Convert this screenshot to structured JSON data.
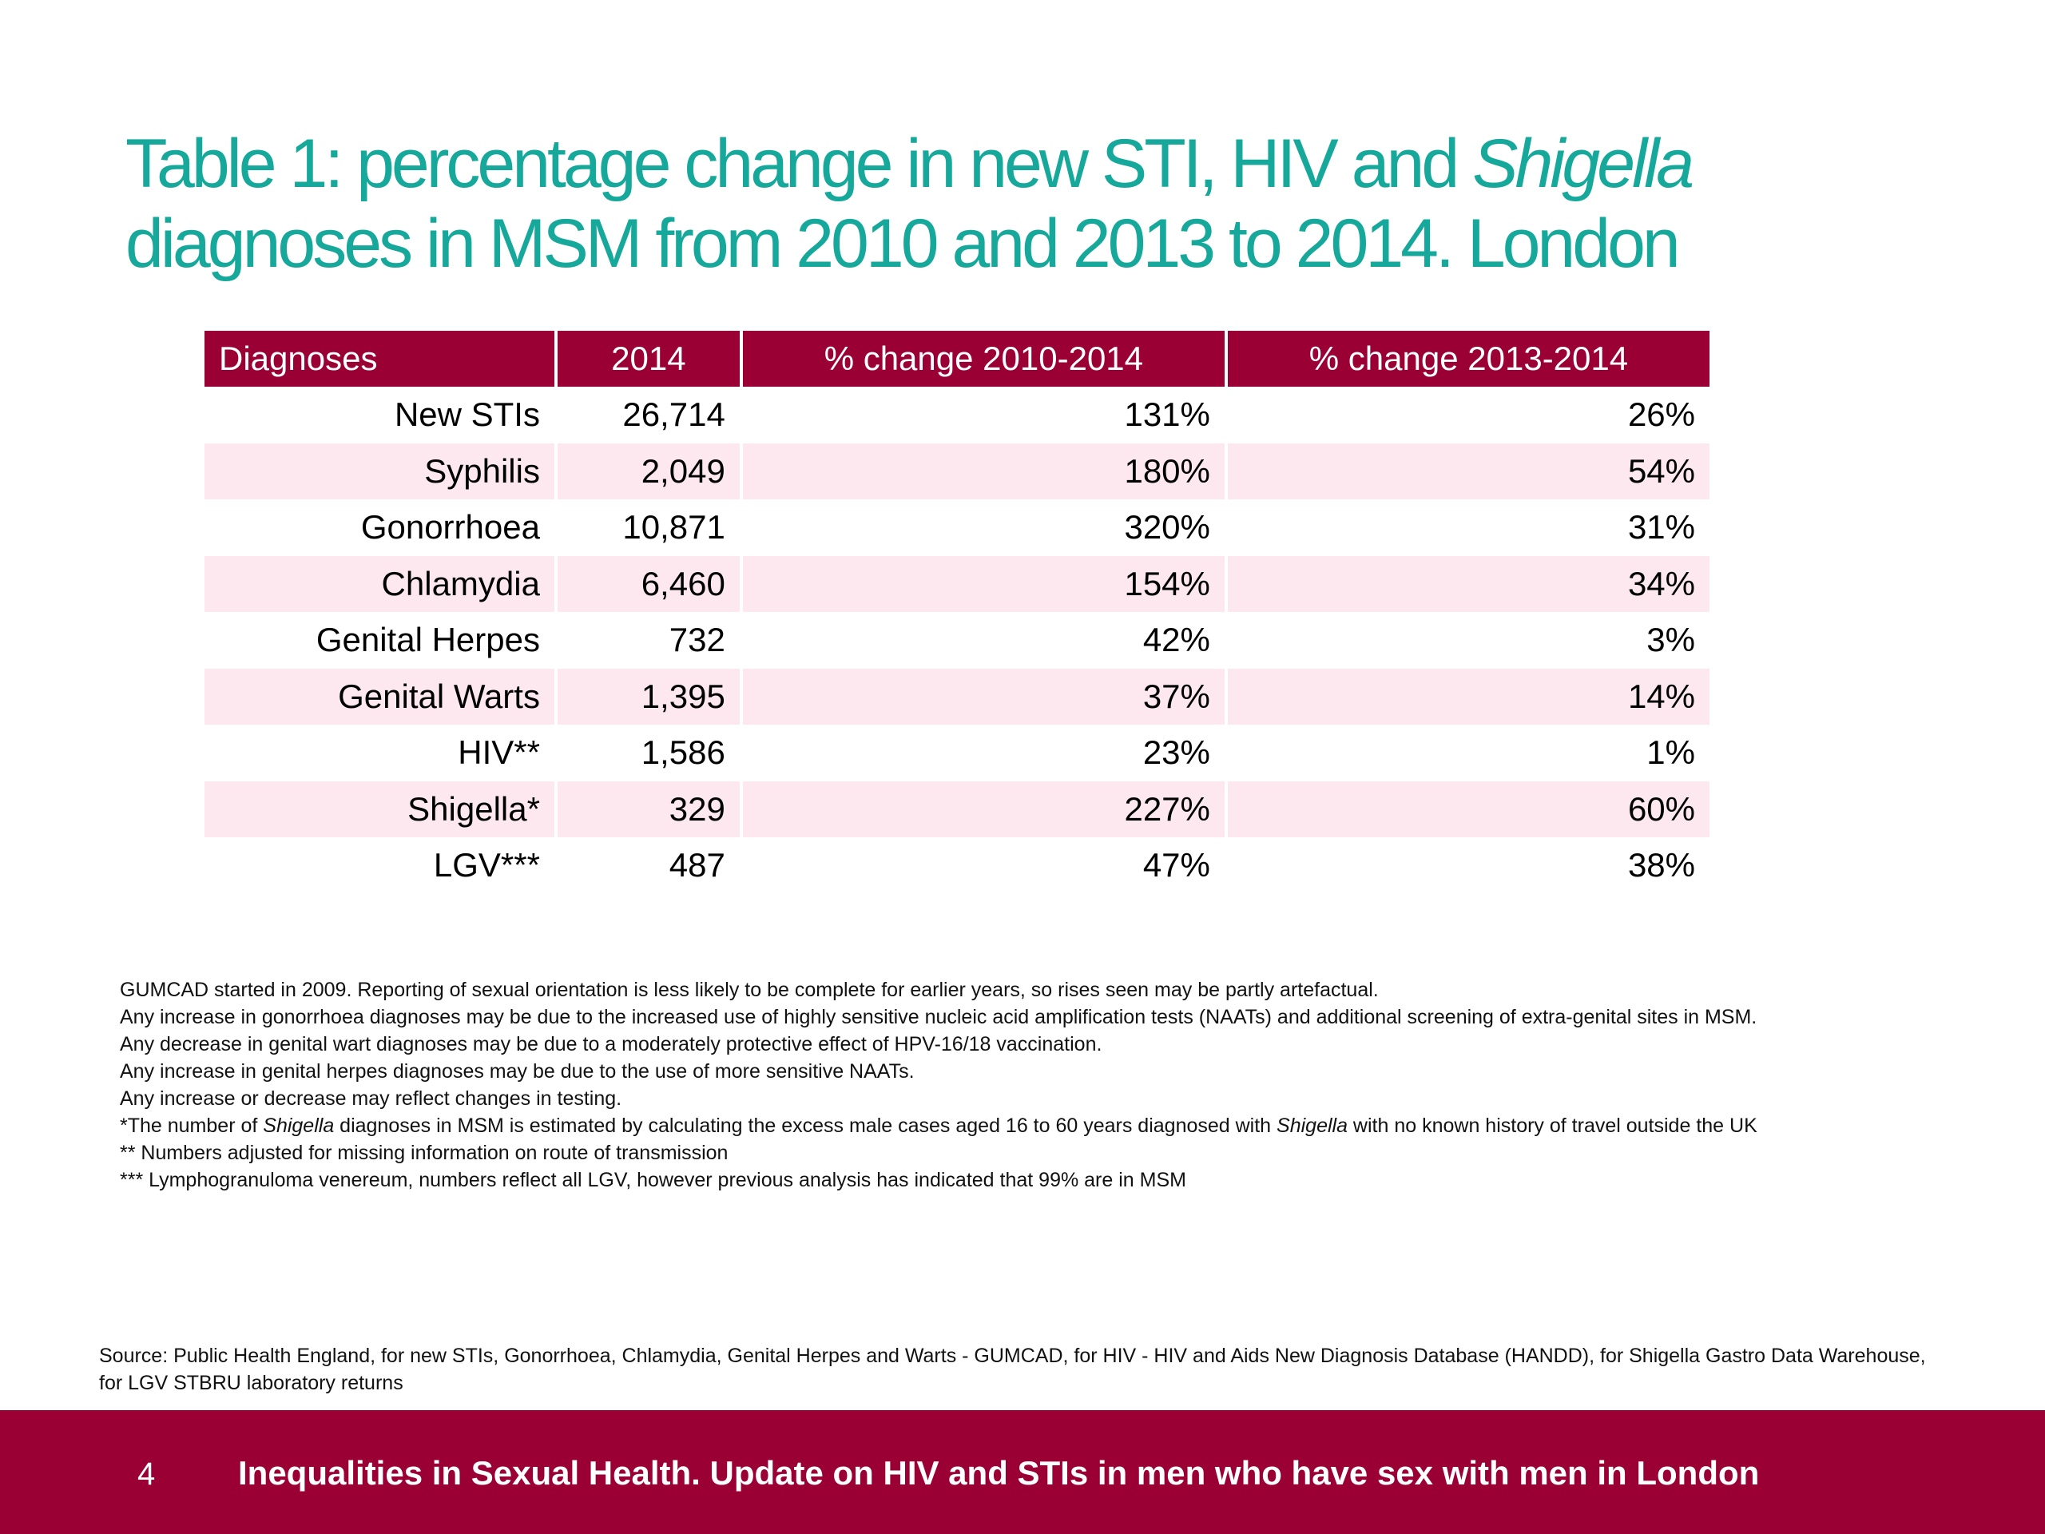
{
  "title": {
    "part1": "Table 1: percentage change in new STI, HIV and ",
    "italic": "Shigella",
    "part2": " diagnoses in MSM from 2010 and 2013 to 2014. London"
  },
  "table": {
    "headers": [
      "Diagnoses",
      "2014",
      "% change 2010-2014",
      "% change 2013-2014"
    ],
    "rows": [
      [
        "New STIs",
        "26,714",
        "131%",
        "26%"
      ],
      [
        "Syphilis",
        "2,049",
        "180%",
        "54%"
      ],
      [
        "Gonorrhoea",
        "10,871",
        "320%",
        "31%"
      ],
      [
        "Chlamydia",
        "6,460",
        "154%",
        "34%"
      ],
      [
        "Genital Herpes",
        "732",
        "42%",
        "3%"
      ],
      [
        "Genital Warts",
        "1,395",
        "37%",
        "14%"
      ],
      [
        "HIV**",
        "1,586",
        "23%",
        "1%"
      ],
      [
        "Shigella*",
        "329",
        "227%",
        "60%"
      ],
      [
        "LGV***",
        "487",
        "47%",
        "38%"
      ]
    ]
  },
  "notes": {
    "n1": "GUMCAD started in 2009. Reporting of sexual orientation is less likely to be complete for earlier years, so rises seen may be partly artefactual.",
    "n2": "Any increase in gonorrhoea diagnoses may be due to the increased use of highly sensitive nucleic acid amplification tests (NAATs) and additional screening of extra-genital sites in MSM.",
    "n3": "Any decrease in genital wart diagnoses may be due to a moderately protective effect of HPV-16/18 vaccination.",
    "n4": "Any increase in genital herpes diagnoses may be due to the use of more sensitive NAATs.",
    "n5": "Any increase or decrease may reflect changes in testing.",
    "n6_a": "*The number of ",
    "n6_b": "Shigella",
    "n6_c": " diagnoses in MSM is estimated by calculating the excess male cases aged 16 to 60 years diagnosed with ",
    "n6_d": "Shigella",
    "n6_e": " with no known history of travel outside the UK",
    "n7": "** Numbers adjusted for missing information on route of transmission",
    "n8": "*** Lymphogranuloma venereum, numbers reflect all LGV, however previous analysis has indicated that 99% are in MSM"
  },
  "source": "Source: Public Health England, for new STIs, Gonorrhoea, Chlamydia, Genital Herpes and Warts - GUMCAD, for HIV - HIV and Aids New Diagnosis Database (HANDD), for Shigella Gastro Data Warehouse, for LGV STBRU laboratory returns",
  "footer": {
    "page_number": "4",
    "text": "Inequalities in Sexual Health. Update on HIV and STIs in men who have sex with men in London"
  },
  "colors": {
    "title": "#16a89a",
    "header_bg": "#9b0034",
    "alt_row_bg": "#fce8ee",
    "footer_bg": "#9b0034"
  }
}
